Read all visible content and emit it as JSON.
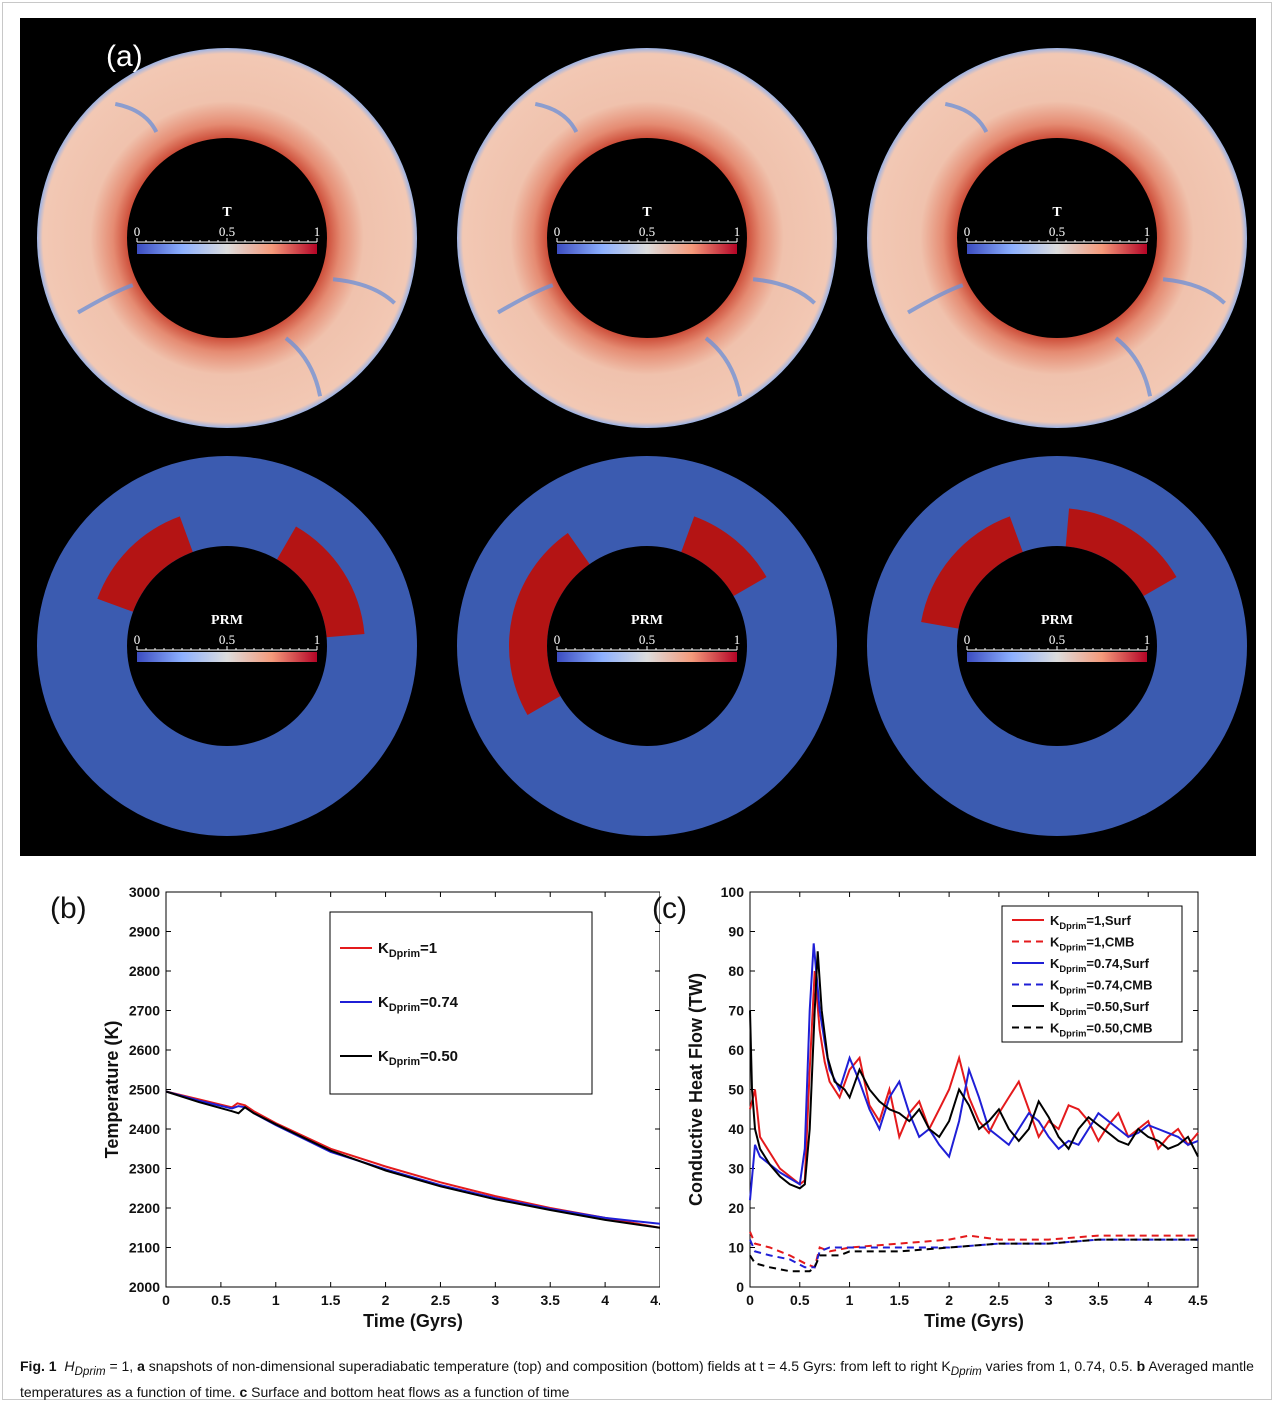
{
  "panel_a": {
    "label": "(a)",
    "top_colorbar_title": "T",
    "bottom_colorbar_title": "PRM",
    "colorbar_ticks": [
      "0",
      "0.5",
      "1"
    ],
    "colors": {
      "cold": "#3b4cc0",
      "warm": "#f2c8b4",
      "hot": "#b40426",
      "blue_field": "#3b5bb0",
      "prm_red": "#b41414"
    }
  },
  "panel_b": {
    "label": "(b)"
  },
  "panel_c": {
    "label": "(c)"
  },
  "caption": {
    "fig_label": "Fig. 1",
    "text_1": "H",
    "sub_1": "Dprim",
    "text_2": " = 1, ",
    "bold_a": "a",
    "text_3": " snapshots of non-dimensional superadiabatic temperature (top) and composition (bottom) fields at t = 4.5 Gyrs: from left to right K",
    "sub_2": "Dprim",
    "text_4": " varies from 1, 0.74, 0.5. ",
    "bold_b": "b",
    "text_5": " Averaged mantle temperatures as a function of time. ",
    "bold_c": "c",
    "text_6": " Surface and bottom heat flows as a function of time"
  },
  "chart_data": [
    {
      "type": "line",
      "xlabel": "Time (Gyrs)",
      "ylabel": "Temperature (K)",
      "xlim": [
        0,
        4.5
      ],
      "ylim": [
        2000,
        3000
      ],
      "xticks": [
        "0",
        "0.5",
        "1",
        "1.5",
        "2",
        "2.5",
        "3",
        "3.5",
        "4",
        "4.5"
      ],
      "yticks": [
        "2000",
        "2100",
        "2200",
        "2300",
        "2400",
        "2500",
        "2600",
        "2700",
        "2800",
        "2900",
        "3000"
      ],
      "legend_position": "top-right",
      "series": [
        {
          "name": "=1",
          "name_main": "K",
          "name_sub": "Dprim",
          "color": "#e41a1c",
          "style": "solid",
          "x": [
            0,
            0.3,
            0.6,
            0.65,
            0.72,
            0.8,
            1.0,
            1.5,
            2.0,
            2.5,
            3.0,
            3.5,
            4.0,
            4.5
          ],
          "y": [
            2495,
            2475,
            2455,
            2465,
            2460,
            2445,
            2415,
            2350,
            2305,
            2265,
            2230,
            2200,
            2175,
            2150
          ]
        },
        {
          "name": "=0.74",
          "name_main": "K",
          "name_sub": "Dprim",
          "color": "#1f1fd6",
          "style": "solid",
          "x": [
            0,
            0.3,
            0.6,
            0.66,
            0.72,
            0.8,
            1.0,
            1.5,
            2.0,
            2.5,
            3.0,
            3.5,
            4.0,
            4.5
          ],
          "y": [
            2495,
            2472,
            2452,
            2458,
            2455,
            2440,
            2410,
            2342,
            2298,
            2258,
            2225,
            2198,
            2175,
            2160
          ]
        },
        {
          "name": "=0.50",
          "name_main": "K",
          "name_sub": "Dprim",
          "color": "#000000",
          "style": "solid",
          "x": [
            0,
            0.3,
            0.6,
            0.66,
            0.72,
            0.8,
            1.0,
            1.5,
            2.0,
            2.5,
            3.0,
            3.5,
            4.0,
            4.5
          ],
          "y": [
            2495,
            2468,
            2445,
            2440,
            2455,
            2440,
            2412,
            2345,
            2295,
            2255,
            2222,
            2195,
            2170,
            2150
          ]
        }
      ]
    },
    {
      "type": "line",
      "xlabel": "Time (Gyrs)",
      "ylabel": "Conductive Heat Flow (TW)",
      "xlim": [
        0,
        4.5
      ],
      "ylim": [
        0,
        100
      ],
      "xticks": [
        "0",
        "0.5",
        "1",
        "1.5",
        "2",
        "2.5",
        "3",
        "3.5",
        "4",
        "4.5"
      ],
      "yticks": [
        "0",
        "10",
        "20",
        "30",
        "40",
        "50",
        "60",
        "70",
        "80",
        "90",
        "100"
      ],
      "legend_position": "top-right",
      "series": [
        {
          "name": "=1,Surf",
          "name_main": "K",
          "name_sub": "Dprim",
          "color": "#e41a1c",
          "style": "solid",
          "x": [
            0,
            0.05,
            0.1,
            0.3,
            0.5,
            0.55,
            0.6,
            0.65,
            0.7,
            0.75,
            0.8,
            0.9,
            1.0,
            1.1,
            1.2,
            1.3,
            1.4,
            1.5,
            1.6,
            1.7,
            1.8,
            1.9,
            2.0,
            2.1,
            2.2,
            2.3,
            2.4,
            2.5,
            2.6,
            2.7,
            2.8,
            2.9,
            3.0,
            3.1,
            3.2,
            3.3,
            3.4,
            3.5,
            3.6,
            3.7,
            3.8,
            3.9,
            4.0,
            4.1,
            4.2,
            4.3,
            4.4,
            4.5
          ],
          "y": [
            45,
            50,
            38,
            30,
            26,
            27,
            55,
            80,
            65,
            57,
            52,
            48,
            55,
            58,
            46,
            42,
            50,
            38,
            44,
            47,
            40,
            45,
            50,
            58,
            48,
            42,
            39,
            44,
            48,
            52,
            45,
            38,
            42,
            40,
            46,
            45,
            42,
            37,
            41,
            44,
            38,
            40,
            42,
            35,
            38,
            40,
            36,
            39
          ]
        },
        {
          "name": "=1,CMB",
          "name_main": "K",
          "name_sub": "Dprim",
          "color": "#e41a1c",
          "style": "dashed",
          "x": [
            0,
            0.05,
            0.2,
            0.4,
            0.55,
            0.65,
            0.7,
            0.8,
            1.0,
            1.5,
            2.0,
            2.2,
            2.5,
            3.0,
            3.5,
            4.0,
            4.5
          ],
          "y": [
            14,
            11,
            10,
            8,
            6,
            5,
            10,
            9,
            10,
            11,
            12,
            13,
            12,
            12,
            13,
            13,
            13
          ]
        },
        {
          "name": "=0.74,Surf",
          "name_main": "K",
          "name_sub": "Dprim",
          "color": "#1f1fd6",
          "style": "solid",
          "x": [
            0,
            0.05,
            0.1,
            0.3,
            0.5,
            0.55,
            0.6,
            0.64,
            0.7,
            0.75,
            0.8,
            0.9,
            1.0,
            1.1,
            1.2,
            1.3,
            1.4,
            1.5,
            1.6,
            1.7,
            1.8,
            1.9,
            2.0,
            2.1,
            2.2,
            2.3,
            2.4,
            2.5,
            2.6,
            2.7,
            2.8,
            2.9,
            3.0,
            3.1,
            3.2,
            3.3,
            3.4,
            3.5,
            3.6,
            3.7,
            3.8,
            3.9,
            4.0,
            4.1,
            4.2,
            4.3,
            4.4,
            4.5
          ],
          "y": [
            22,
            36,
            33,
            29,
            26,
            35,
            70,
            87,
            70,
            62,
            55,
            50,
            58,
            52,
            45,
            40,
            48,
            52,
            44,
            38,
            40,
            36,
            33,
            42,
            55,
            48,
            40,
            38,
            36,
            40,
            44,
            42,
            38,
            35,
            37,
            36,
            40,
            44,
            42,
            40,
            38,
            39,
            41,
            40,
            39,
            38,
            36,
            37
          ]
        },
        {
          "name": "=0.74,CMB",
          "name_main": "K",
          "name_sub": "Dprim",
          "color": "#1f1fd6",
          "style": "dashed",
          "x": [
            0,
            0.05,
            0.2,
            0.4,
            0.55,
            0.65,
            0.7,
            0.8,
            1.0,
            1.5,
            2.0,
            2.5,
            3.0,
            3.5,
            4.0,
            4.5
          ],
          "y": [
            12,
            9,
            8,
            7,
            5,
            5,
            9,
            10,
            10,
            10,
            10,
            11,
            11,
            12,
            12,
            12
          ]
        },
        {
          "name": "=0.50,Surf",
          "name_main": "K",
          "name_sub": "Dprim",
          "color": "#000000",
          "style": "solid",
          "x": [
            0,
            0.02,
            0.05,
            0.1,
            0.2,
            0.3,
            0.4,
            0.5,
            0.55,
            0.6,
            0.65,
            0.68,
            0.72,
            0.78,
            0.85,
            0.95,
            1.0,
            1.1,
            1.2,
            1.3,
            1.4,
            1.5,
            1.6,
            1.7,
            1.8,
            1.9,
            2.0,
            2.1,
            2.2,
            2.3,
            2.4,
            2.5,
            2.6,
            2.7,
            2.8,
            2.9,
            3.0,
            3.1,
            3.2,
            3.3,
            3.4,
            3.5,
            3.6,
            3.7,
            3.8,
            3.9,
            4.0,
            4.1,
            4.2,
            4.3,
            4.4,
            4.5
          ],
          "y": [
            70,
            50,
            40,
            35,
            31,
            28,
            26,
            25,
            26,
            40,
            70,
            85,
            70,
            58,
            52,
            50,
            48,
            55,
            50,
            47,
            45,
            44,
            42,
            45,
            40,
            38,
            42,
            50,
            46,
            40,
            42,
            45,
            40,
            37,
            40,
            47,
            43,
            38,
            35,
            40,
            43,
            41,
            39,
            37,
            36,
            40,
            38,
            37,
            35,
            36,
            38,
            33
          ]
        },
        {
          "name": "=0.50,CMB",
          "name_main": "K",
          "name_sub": "Dprim",
          "color": "#000000",
          "style": "dashed",
          "x": [
            0,
            0.05,
            0.2,
            0.4,
            0.6,
            0.65,
            0.7,
            0.9,
            1.0,
            1.5,
            2.0,
            2.5,
            3.0,
            3.5,
            4.0,
            4.5
          ],
          "y": [
            8,
            6,
            5,
            4,
            4,
            5,
            8,
            8,
            9,
            9,
            10,
            11,
            11,
            12,
            12,
            12
          ]
        }
      ]
    }
  ]
}
